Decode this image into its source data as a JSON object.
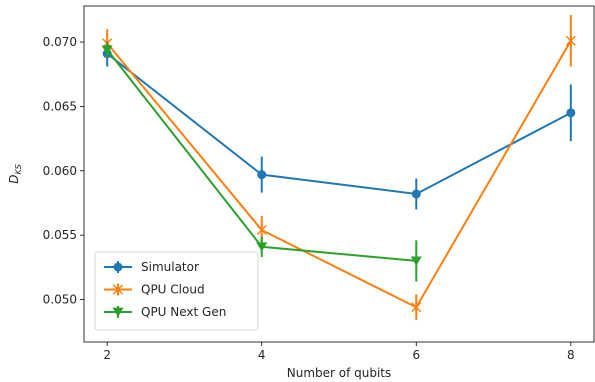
{
  "chart_data": {
    "type": "line",
    "title": "",
    "xlabel": "Number of qubits",
    "ylabel": "D",
    "ylabel_subscript": "KS",
    "x_ticks": [
      2,
      4,
      6,
      8
    ],
    "x_tick_labels": [
      "2",
      "4",
      "6",
      "8"
    ],
    "y_ticks": [
      0.05,
      0.055,
      0.06,
      0.065,
      0.07
    ],
    "y_tick_labels": [
      "0.050",
      "0.055",
      "0.060",
      "0.065",
      "0.070"
    ],
    "xlim": [
      1.7,
      8.3
    ],
    "ylim": [
      0.0467,
      0.0728
    ],
    "grid": false,
    "legend_position": "lower-left",
    "series": [
      {
        "name": "Simulator",
        "color": "#1f77b4",
        "marker": "circle",
        "x": [
          2,
          4,
          6,
          8
        ],
        "y": [
          0.0691,
          0.0597,
          0.0582,
          0.0645
        ],
        "yerr": [
          0.001,
          0.0014,
          0.0012,
          0.0022
        ]
      },
      {
        "name": "QPU Cloud",
        "color": "#ff7f0e",
        "marker": "x",
        "x": [
          2,
          4,
          6,
          8
        ],
        "y": [
          0.0699,
          0.0554,
          0.0494,
          0.0701
        ],
        "yerr": [
          0.0011,
          0.0011,
          0.001,
          0.002
        ]
      },
      {
        "name": "QPU Next Gen",
        "color": "#2ca02c",
        "marker": "triangle-down",
        "x": [
          2,
          4,
          6
        ],
        "y": [
          0.0694,
          0.0541,
          0.053
        ],
        "yerr": [
          0.0006,
          0.0008,
          0.0016
        ]
      }
    ]
  }
}
